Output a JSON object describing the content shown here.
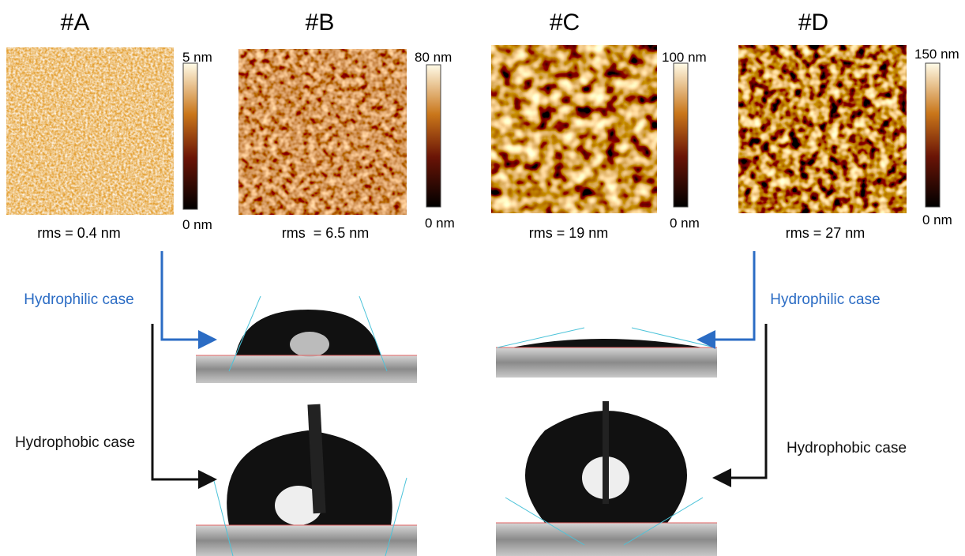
{
  "panels": [
    {
      "label": "#A",
      "scale_max": "5 nm",
      "scale_min": "0 nm",
      "rms": "rms = 0.4 nm"
    },
    {
      "label": "#B",
      "scale_max": "80 nm",
      "scale_min": "0 nm",
      "rms": "rms  = 6.5 nm"
    },
    {
      "label": "#C",
      "scale_max": "100 nm",
      "scale_min": "0 nm",
      "rms": "rms = 19 nm"
    },
    {
      "label": "#D",
      "scale_max": "150 nm",
      "scale_min": "0 nm",
      "rms": "rms = 27 nm"
    }
  ],
  "annotations": {
    "left_hydrophilic": "Hydrophilic case",
    "left_hydrophobic": "Hydrophobic case",
    "right_hydrophilic": "Hydrophilic case",
    "right_hydrophobic": "Hydrophobic case"
  }
}
